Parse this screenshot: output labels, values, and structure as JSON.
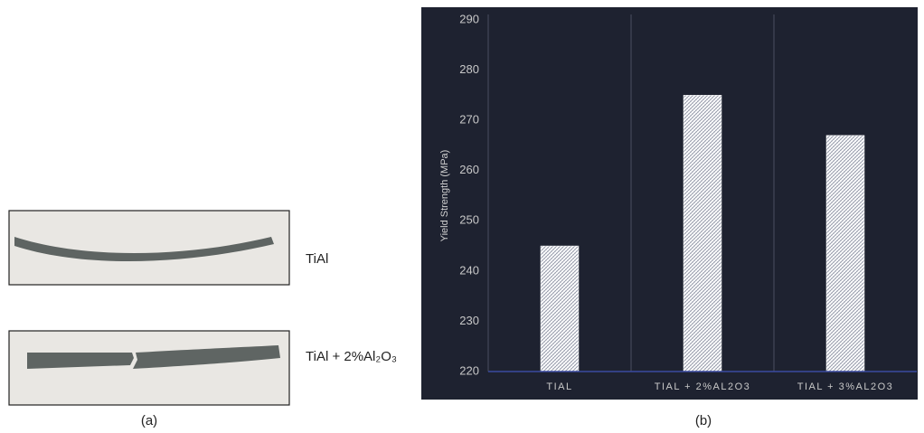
{
  "photos": {
    "labels": [
      "TiAl",
      "TiAl + 2%Al₂O₃"
    ]
  },
  "captions": [
    "(a)",
    "(b)"
  ],
  "chart_data": {
    "type": "bar",
    "y_label": "Yield Strength (MPa)",
    "categories": [
      "TIAL",
      "TIAL + 2%AL2O3",
      "TIAL + 3%AL2O3"
    ],
    "values": [
      245,
      275,
      267
    ],
    "color": "#ffffff",
    "hatch_color": "#8a8fa0",
    "background": "#1e2230",
    "axis_color": "#3a4aa0",
    "ylim": [
      220,
      290
    ],
    "yticks": [
      220,
      230,
      240,
      250,
      260,
      270,
      280,
      290
    ],
    "grid": false
  }
}
